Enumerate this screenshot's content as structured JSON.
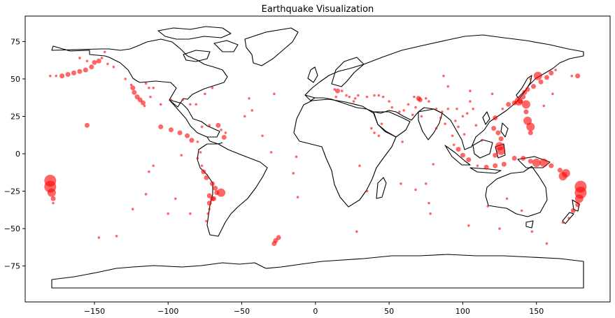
{
  "chart_data": {
    "type": "scatter",
    "title": "Earthquake Visualization",
    "xlabel": "",
    "ylabel": "",
    "xlim": [
      -197,
      200
    ],
    "ylim": [
      -99,
      92
    ],
    "xticks": [
      -150,
      -100,
      -50,
      0,
      50,
      100,
      150
    ],
    "yticks": [
      75,
      50,
      25,
      0,
      -25,
      -50,
      -75
    ],
    "grid": false,
    "colors": {
      "points": "#ff0000",
      "outline": "#000000",
      "background": "#ffffff"
    },
    "point_opacity": 0.6,
    "series": [
      {
        "values": [
          {
            "x": -180,
            "y": 52,
            "mag": 1
          },
          {
            "x": -176,
            "y": 52,
            "mag": 1
          },
          {
            "x": -172,
            "y": 52,
            "mag": 2
          },
          {
            "x": -168,
            "y": 53,
            "mag": 2
          },
          {
            "x": -164,
            "y": 54,
            "mag": 2
          },
          {
            "x": -160,
            "y": 55,
            "mag": 2
          },
          {
            "x": -156,
            "y": 56,
            "mag": 2
          },
          {
            "x": -152,
            "y": 58,
            "mag": 2
          },
          {
            "x": -150,
            "y": 61,
            "mag": 2
          },
          {
            "x": -147,
            "y": 62,
            "mag": 2
          },
          {
            "x": -145,
            "y": 64,
            "mag": 1
          },
          {
            "x": -141,
            "y": 60,
            "mag": 1
          },
          {
            "x": -137,
            "y": 58,
            "mag": 1
          },
          {
            "x": -155,
            "y": 62,
            "mag": 1
          },
          {
            "x": -143,
            "y": 68,
            "mag": 1
          },
          {
            "x": -160,
            "y": 64,
            "mag": 1
          },
          {
            "x": -129,
            "y": 50,
            "mag": 1
          },
          {
            "x": -125,
            "y": 46,
            "mag": 1
          },
          {
            "x": -124,
            "y": 44,
            "mag": 2
          },
          {
            "x": -123,
            "y": 41,
            "mag": 2
          },
          {
            "x": -121,
            "y": 38,
            "mag": 2
          },
          {
            "x": -119,
            "y": 36,
            "mag": 2
          },
          {
            "x": -117,
            "y": 34,
            "mag": 2
          },
          {
            "x": -116,
            "y": 32,
            "mag": 1
          },
          {
            "x": -113,
            "y": 44,
            "mag": 1
          },
          {
            "x": -112,
            "y": 38,
            "mag": 1
          },
          {
            "x": -115,
            "y": 47,
            "mag": 1
          },
          {
            "x": -110,
            "y": 44,
            "mag": 1
          },
          {
            "x": -105,
            "y": 33,
            "mag": 1
          },
          {
            "x": -98,
            "y": 36,
            "mag": 1
          },
          {
            "x": -90,
            "y": 36,
            "mag": 1
          },
          {
            "x": -85,
            "y": 33,
            "mag": 1
          },
          {
            "x": -81,
            "y": 33,
            "mag": 1
          },
          {
            "x": -75,
            "y": 40,
            "mag": 1
          },
          {
            "x": -70,
            "y": 44,
            "mag": 1
          },
          {
            "x": -155,
            "y": 19,
            "mag": 2
          },
          {
            "x": -105,
            "y": 18,
            "mag": 2
          },
          {
            "x": -98,
            "y": 16,
            "mag": 2
          },
          {
            "x": -92,
            "y": 14,
            "mag": 2
          },
          {
            "x": -87,
            "y": 12,
            "mag": 2
          },
          {
            "x": -84,
            "y": 9,
            "mag": 2
          },
          {
            "x": -80,
            "y": 8,
            "mag": 1
          },
          {
            "x": -77,
            "y": 18,
            "mag": 1
          },
          {
            "x": -72,
            "y": 19,
            "mag": 1
          },
          {
            "x": -66,
            "y": 19,
            "mag": 2
          },
          {
            "x": -64,
            "y": 16,
            "mag": 1
          },
          {
            "x": -61,
            "y": 14,
            "mag": 1
          },
          {
            "x": -62,
            "y": 11,
            "mag": 2
          },
          {
            "x": -78,
            "y": 1,
            "mag": 1
          },
          {
            "x": -80,
            "y": -3,
            "mag": 1
          },
          {
            "x": -77,
            "y": -8,
            "mag": 1
          },
          {
            "x": -76,
            "y": -12,
            "mag": 2
          },
          {
            "x": -74,
            "y": -16,
            "mag": 2
          },
          {
            "x": -70,
            "y": -20,
            "mag": 2
          },
          {
            "x": -68,
            "y": -23,
            "mag": 2
          },
          {
            "x": -67,
            "y": -26,
            "mag": 2
          },
          {
            "x": -70,
            "y": -30,
            "mag": 2
          },
          {
            "x": -72,
            "y": -33,
            "mag": 2
          },
          {
            "x": -72,
            "y": -37,
            "mag": 1
          },
          {
            "x": -73,
            "y": -40,
            "mag": 1
          },
          {
            "x": -74,
            "y": -45,
            "mag": 1
          },
          {
            "x": -64,
            "y": -26,
            "mag": 3
          },
          {
            "x": -69,
            "y": -30,
            "mag": 2
          },
          {
            "x": -72,
            "y": -28,
            "mag": 2
          },
          {
            "x": -91,
            "y": -1,
            "mag": 1
          },
          {
            "x": -110,
            "y": -8,
            "mag": 1
          },
          {
            "x": -115,
            "y": -27,
            "mag": 1
          },
          {
            "x": -100,
            "y": -40,
            "mag": 1
          },
          {
            "x": -95,
            "y": -30,
            "mag": 1
          },
          {
            "x": -85,
            "y": -40,
            "mag": 1
          },
          {
            "x": -124,
            "y": -37,
            "mag": 1
          },
          {
            "x": -113,
            "y": -12,
            "mag": 1
          },
          {
            "x": -43,
            "y": 29,
            "mag": 1
          },
          {
            "x": -45,
            "y": 37,
            "mag": 1
          },
          {
            "x": -48,
            "y": 25,
            "mag": 1
          },
          {
            "x": -36,
            "y": 12,
            "mag": 1
          },
          {
            "x": -28,
            "y": 40,
            "mag": 1
          },
          {
            "x": -30,
            "y": 1,
            "mag": 1
          },
          {
            "x": -13,
            "y": -2,
            "mag": 1
          },
          {
            "x": -15,
            "y": -13,
            "mag": 1
          },
          {
            "x": -12,
            "y": -29,
            "mag": 1
          },
          {
            "x": -25,
            "y": -56,
            "mag": 2
          },
          {
            "x": -27,
            "y": -58,
            "mag": 2
          },
          {
            "x": -28,
            "y": -60,
            "mag": 2
          },
          {
            "x": -135,
            "y": -55,
            "mag": 1
          },
          {
            "x": -147,
            "y": -56,
            "mag": 1
          },
          {
            "x": -180,
            "y": -18,
            "mag": 4
          },
          {
            "x": -180,
            "y": -22,
            "mag": 4
          },
          {
            "x": -179,
            "y": -26,
            "mag": 3
          },
          {
            "x": -178,
            "y": -30,
            "mag": 2
          },
          {
            "x": -178,
            "y": -33,
            "mag": 1
          },
          {
            "x": 180,
            "y": -22,
            "mag": 4
          },
          {
            "x": 180,
            "y": -26,
            "mag": 4
          },
          {
            "x": 179,
            "y": -30,
            "mag": 3
          },
          {
            "x": 178,
            "y": -34,
            "mag": 2
          },
          {
            "x": 175,
            "y": -38,
            "mag": 2
          },
          {
            "x": 172,
            "y": -43,
            "mag": 1
          },
          {
            "x": 168,
            "y": -46,
            "mag": 1
          },
          {
            "x": 168,
            "y": -15,
            "mag": 3
          },
          {
            "x": 170,
            "y": -13,
            "mag": 3
          },
          {
            "x": 166,
            "y": -11,
            "mag": 2
          },
          {
            "x": 160,
            "y": -8,
            "mag": 2
          },
          {
            "x": 155,
            "y": -6,
            "mag": 3
          },
          {
            "x": 150,
            "y": -6,
            "mag": 3
          },
          {
            "x": 146,
            "y": -5,
            "mag": 2
          },
          {
            "x": 141,
            "y": -3,
            "mag": 2
          },
          {
            "x": 135,
            "y": -3,
            "mag": 2
          },
          {
            "x": 128,
            "y": -7,
            "mag": 2
          },
          {
            "x": 122,
            "y": -8,
            "mag": 2
          },
          {
            "x": 116,
            "y": -9,
            "mag": 2
          },
          {
            "x": 110,
            "y": -8,
            "mag": 1
          },
          {
            "x": 104,
            "y": -4,
            "mag": 2
          },
          {
            "x": 100,
            "y": -1,
            "mag": 2
          },
          {
            "x": 97,
            "y": 3,
            "mag": 2
          },
          {
            "x": 94,
            "y": 6,
            "mag": 1
          },
          {
            "x": 93,
            "y": 12,
            "mag": 1
          },
          {
            "x": 126,
            "y": 2,
            "mag": 3
          },
          {
            "x": 125,
            "y": 5,
            "mag": 3
          },
          {
            "x": 122,
            "y": -1,
            "mag": 2
          },
          {
            "x": 126,
            "y": 10,
            "mag": 2
          },
          {
            "x": 124,
            "y": 14,
            "mag": 2
          },
          {
            "x": 121,
            "y": 17,
            "mag": 2
          },
          {
            "x": 122,
            "y": 24,
            "mag": 2
          },
          {
            "x": 127,
            "y": 30,
            "mag": 1
          },
          {
            "x": 131,
            "y": 33,
            "mag": 2
          },
          {
            "x": 135,
            "y": 34,
            "mag": 2
          },
          {
            "x": 139,
            "y": 35,
            "mag": 2
          },
          {
            "x": 141,
            "y": 38,
            "mag": 2
          },
          {
            "x": 142,
            "y": 41,
            "mag": 2
          },
          {
            "x": 144,
            "y": 43,
            "mag": 2
          },
          {
            "x": 148,
            "y": 45,
            "mag": 2
          },
          {
            "x": 153,
            "y": 48,
            "mag": 2
          },
          {
            "x": 157,
            "y": 51,
            "mag": 2
          },
          {
            "x": 160,
            "y": 54,
            "mag": 2
          },
          {
            "x": 163,
            "y": 56,
            "mag": 1
          },
          {
            "x": 143,
            "y": 33,
            "mag": 3
          },
          {
            "x": 143,
            "y": 28,
            "mag": 2
          },
          {
            "x": 144,
            "y": 22,
            "mag": 3
          },
          {
            "x": 146,
            "y": 18,
            "mag": 3
          },
          {
            "x": 146,
            "y": 14,
            "mag": 2
          },
          {
            "x": 138,
            "y": 35,
            "mag": 3
          },
          {
            "x": 146,
            "y": 50,
            "mag": 1
          },
          {
            "x": 151,
            "y": 52,
            "mag": 3
          },
          {
            "x": 178,
            "y": 52,
            "mag": 2
          },
          {
            "x": 174,
            "y": 52,
            "mag": 1
          },
          {
            "x": 107,
            "y": 30,
            "mag": 1
          },
          {
            "x": 103,
            "y": 27,
            "mag": 1
          },
          {
            "x": 100,
            "y": 25,
            "mag": 1
          },
          {
            "x": 105,
            "y": 35,
            "mag": 1
          },
          {
            "x": 96,
            "y": 30,
            "mag": 1
          },
          {
            "x": 90,
            "y": 30,
            "mag": 1
          },
          {
            "x": 86,
            "y": 28,
            "mag": 1
          },
          {
            "x": 82,
            "y": 30,
            "mag": 1
          },
          {
            "x": 77,
            "y": 35,
            "mag": 1
          },
          {
            "x": 75,
            "y": 37,
            "mag": 1
          },
          {
            "x": 70,
            "y": 37,
            "mag": 2
          },
          {
            "x": 71,
            "y": 36,
            "mag": 2
          },
          {
            "x": 67,
            "y": 38,
            "mag": 1
          },
          {
            "x": 63,
            "y": 33,
            "mag": 1
          },
          {
            "x": 60,
            "y": 29,
            "mag": 1
          },
          {
            "x": 57,
            "y": 28,
            "mag": 1
          },
          {
            "x": 52,
            "y": 31,
            "mag": 1
          },
          {
            "x": 50,
            "y": 35,
            "mag": 1
          },
          {
            "x": 46,
            "y": 38,
            "mag": 1
          },
          {
            "x": 43,
            "y": 39,
            "mag": 1
          },
          {
            "x": 40,
            "y": 39,
            "mag": 1
          },
          {
            "x": 35,
            "y": 38,
            "mag": 1
          },
          {
            "x": 29,
            "y": 39,
            "mag": 1
          },
          {
            "x": 27,
            "y": 37,
            "mag": 1
          },
          {
            "x": 23,
            "y": 38,
            "mag": 1
          },
          {
            "x": 21,
            "y": 39,
            "mag": 1
          },
          {
            "x": 18,
            "y": 42,
            "mag": 1
          },
          {
            "x": 15,
            "y": 42,
            "mag": 2
          },
          {
            "x": 13,
            "y": 43,
            "mag": 1
          },
          {
            "x": 14,
            "y": 38,
            "mag": 1
          },
          {
            "x": 26,
            "y": 35,
            "mag": 1
          },
          {
            "x": 40,
            "y": 14,
            "mag": 1
          },
          {
            "x": 43,
            "y": 12,
            "mag": 1
          },
          {
            "x": 38,
            "y": 17,
            "mag": 1
          },
          {
            "x": 45,
            "y": 20,
            "mag": 1
          },
          {
            "x": 66,
            "y": 26,
            "mag": 1
          },
          {
            "x": 68,
            "y": 31,
            "mag": 1
          },
          {
            "x": 72,
            "y": 25,
            "mag": 1
          },
          {
            "x": 82,
            "y": 17,
            "mag": 1
          },
          {
            "x": 88,
            "y": 20,
            "mag": 1
          },
          {
            "x": 85,
            "y": 24,
            "mag": 1
          },
          {
            "x": 97,
            "y": 18,
            "mag": 1
          },
          {
            "x": 95,
            "y": 22,
            "mag": 1
          },
          {
            "x": 80,
            "y": -7,
            "mag": 1
          },
          {
            "x": 75,
            "y": -20,
            "mag": 1
          },
          {
            "x": 77,
            "y": -33,
            "mag": 1
          },
          {
            "x": 78,
            "y": -40,
            "mag": 1
          },
          {
            "x": 68,
            "y": -24,
            "mag": 1
          },
          {
            "x": 58,
            "y": -20,
            "mag": 1
          },
          {
            "x": 59,
            "y": 8,
            "mag": 1
          },
          {
            "x": 30,
            "y": -8,
            "mag": 1
          },
          {
            "x": 28,
            "y": -52,
            "mag": 1
          },
          {
            "x": 35,
            "y": -25,
            "mag": 1
          },
          {
            "x": 117,
            "y": -35,
            "mag": 1
          },
          {
            "x": 130,
            "y": -30,
            "mag": 1
          },
          {
            "x": 140,
            "y": -38,
            "mag": 1
          },
          {
            "x": 147,
            "y": -52,
            "mag": 1
          },
          {
            "x": 125,
            "y": -50,
            "mag": 1
          },
          {
            "x": 104,
            "y": -48,
            "mag": 1
          },
          {
            "x": 157,
            "y": -60,
            "mag": 1
          },
          {
            "x": 155,
            "y": 32,
            "mag": 1
          },
          {
            "x": 161,
            "y": 40,
            "mag": 1
          },
          {
            "x": 101,
            "y": 13,
            "mag": 1
          },
          {
            "x": 109,
            "y": 19,
            "mag": 1
          },
          {
            "x": 113,
            "y": 9,
            "mag": 1
          },
          {
            "x": 90,
            "y": 45,
            "mag": 1
          },
          {
            "x": 105,
            "y": 42,
            "mag": 1
          },
          {
            "x": 120,
            "y": 40,
            "mag": 1
          },
          {
            "x": 87,
            "y": 52,
            "mag": 1
          }
        ]
      }
    ]
  }
}
